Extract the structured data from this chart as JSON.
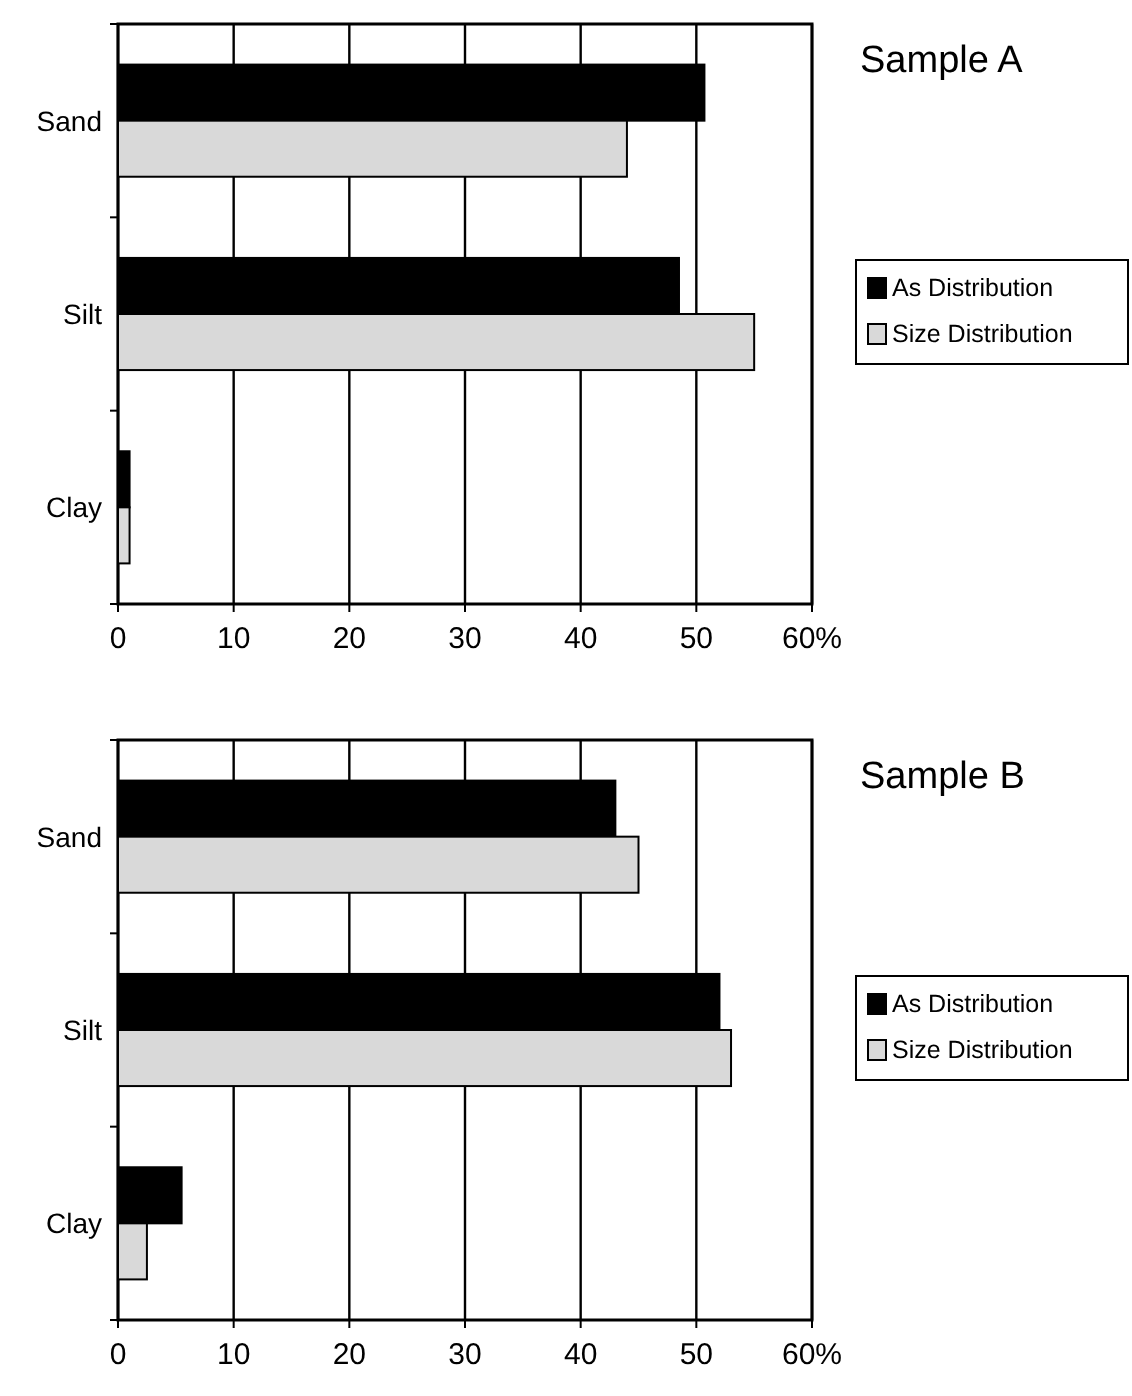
{
  "chart_data": [
    {
      "type": "bar",
      "orientation": "horizontal",
      "title": "Sample A",
      "categories": [
        "Sand",
        "Silt",
        "Clay"
      ],
      "series": [
        {
          "name": "As Distribution",
          "color": "#000000",
          "values": [
            50.7,
            48.5,
            1
          ]
        },
        {
          "name": "Size Distribution",
          "color": "#d9d9d9",
          "values": [
            44,
            55,
            1
          ]
        }
      ],
      "xlim": [
        0,
        60
      ],
      "xticks": [
        0,
        10,
        20,
        30,
        40,
        50,
        {
          "value": 60,
          "label": "60%"
        }
      ],
      "grid": "x",
      "legend": "right"
    },
    {
      "type": "bar",
      "orientation": "horizontal",
      "title": "Sample B",
      "categories": [
        "Sand",
        "Silt",
        "Clay"
      ],
      "series": [
        {
          "name": "As Distribution",
          "color": "#000000",
          "values": [
            43,
            52,
            5.5
          ]
        },
        {
          "name": "Size Distribution",
          "color": "#d9d9d9",
          "values": [
            45,
            53,
            2.5
          ]
        }
      ],
      "xlim": [
        0,
        60
      ],
      "xticks": [
        0,
        10,
        20,
        30,
        40,
        50,
        {
          "value": 60,
          "label": "60%"
        }
      ],
      "grid": "x",
      "legend": "right"
    }
  ]
}
